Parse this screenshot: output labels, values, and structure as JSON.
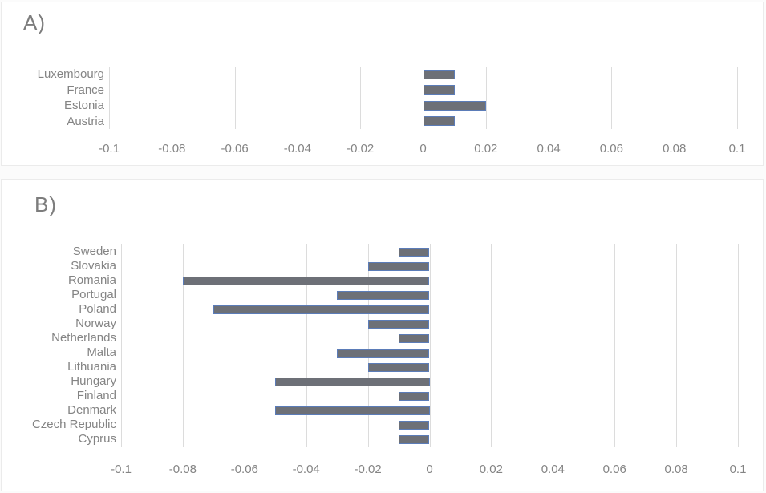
{
  "figure": {
    "panels": [
      {
        "label": "A)"
      },
      {
        "label": "B)"
      }
    ]
  },
  "chart_data": [
    {
      "type": "bar",
      "orientation": "horizontal",
      "title": "A)",
      "categories": [
        "Luxembourg",
        "France",
        "Estonia",
        "Austria"
      ],
      "values": [
        0.01,
        0.01,
        0.02,
        0.01
      ],
      "xlim": [
        -0.1,
        0.1
      ],
      "xticks": [
        -0.1,
        -0.08,
        -0.06,
        -0.04,
        -0.02,
        0,
        0.02,
        0.04,
        0.06,
        0.08,
        0.1
      ],
      "xtick_labels": [
        "-0.1",
        "-0.08",
        "-0.06",
        "-0.04",
        "-0.02",
        "0",
        "0.02",
        "0.04",
        "0.06",
        "0.08",
        "0.1"
      ],
      "grid": true,
      "legend": null,
      "ylabel": "",
      "xlabel": "",
      "colors": {
        "bar_fill": "#6d7077",
        "bar_border": "#5b7cb8",
        "gridline": "#dcdcdc",
        "text": "#848484"
      }
    },
    {
      "type": "bar",
      "orientation": "horizontal",
      "title": "B)",
      "categories": [
        "Sweden",
        "Slovakia",
        "Romania",
        "Portugal",
        "Poland",
        "Norway",
        "Netherlands",
        "Malta",
        "Lithuania",
        "Hungary",
        "Finland",
        "Denmark",
        "Czech Republic",
        "Cyprus"
      ],
      "values": [
        -0.01,
        -0.02,
        -0.08,
        -0.03,
        -0.07,
        -0.02,
        -0.01,
        -0.03,
        -0.02,
        -0.05,
        -0.01,
        -0.05,
        -0.01,
        -0.01
      ],
      "xlim": [
        -0.1,
        0.1
      ],
      "xticks": [
        -0.1,
        -0.08,
        -0.06,
        -0.04,
        -0.02,
        0,
        0.02,
        0.04,
        0.06,
        0.08,
        0.1
      ],
      "xtick_labels": [
        "-0.1",
        "-0.08",
        "-0.06",
        "-0.04",
        "-0.02",
        "0",
        "0.02",
        "0.04",
        "0.06",
        "0.08",
        "0.1"
      ],
      "grid": true,
      "legend": null,
      "ylabel": "",
      "xlabel": "",
      "colors": {
        "bar_fill": "#6d7077",
        "bar_border": "#5b7cb8",
        "gridline": "#dcdcdc",
        "text": "#848484"
      }
    }
  ]
}
